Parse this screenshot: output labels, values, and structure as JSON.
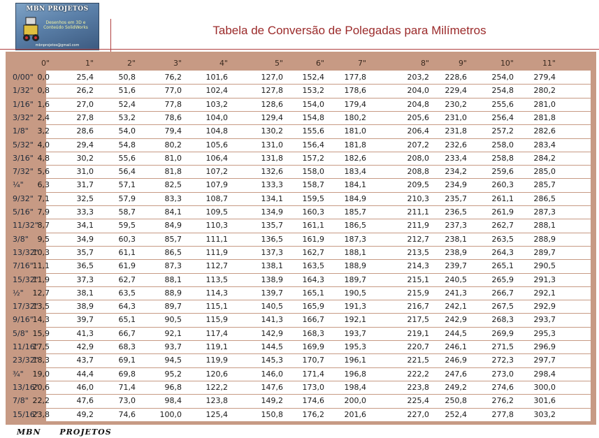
{
  "logo": {
    "name": "MBN PROJETOS",
    "tagline": "Desenhos em 3D e Conteúdo SolidWorks",
    "email": "mbnprojetos@gmail.com"
  },
  "title": "Tabela de Conversão de Polegadas para Milímetros",
  "columns": [
    "0\"",
    "1\"",
    "2\"",
    "3\"",
    "4\"",
    "5\"",
    "6\"",
    "7\"",
    "8\"",
    "9\"",
    "10\"",
    "11\""
  ],
  "rows": [
    {
      "label": "0/00\"",
      "values": [
        "0,0",
        "25,4",
        "50,8",
        "76,2",
        "101,6",
        "127,0",
        "152,4",
        "177,8",
        "203,2",
        "228,6",
        "254,0",
        "279,4"
      ]
    },
    {
      "label": "1/32\"",
      "values": [
        "0,8",
        "26,2",
        "51,6",
        "77,0",
        "102,4",
        "127,8",
        "153,2",
        "178,6",
        "204,0",
        "229,4",
        "254,8",
        "280,2"
      ]
    },
    {
      "label": "1/16\"",
      "values": [
        "1,6",
        "27,0",
        "52,4",
        "77,8",
        "103,2",
        "128,6",
        "154,0",
        "179,4",
        "204,8",
        "230,2",
        "255,6",
        "281,0"
      ]
    },
    {
      "label": "3/32\"",
      "values": [
        "2,4",
        "27,8",
        "53,2",
        "78,6",
        "104,0",
        "129,4",
        "154,8",
        "180,2",
        "205,6",
        "231,0",
        "256,4",
        "281,8"
      ]
    },
    {
      "label": "1/8\"",
      "values": [
        "3,2",
        "28,6",
        "54,0",
        "79,4",
        "104,8",
        "130,2",
        "155,6",
        "181,0",
        "206,4",
        "231,8",
        "257,2",
        "282,6"
      ]
    },
    {
      "label": "5/32\"",
      "values": [
        "4,0",
        "29,4",
        "54,8",
        "80,2",
        "105,6",
        "131,0",
        "156,4",
        "181,8",
        "207,2",
        "232,6",
        "258,0",
        "283,4"
      ]
    },
    {
      "label": "3/16\"",
      "values": [
        "4,8",
        "30,2",
        "55,6",
        "81,0",
        "106,4",
        "131,8",
        "157,2",
        "182,6",
        "208,0",
        "233,4",
        "258,8",
        "284,2"
      ]
    },
    {
      "label": "7/32\"",
      "values": [
        "5,6",
        "31,0",
        "56,4",
        "81,8",
        "107,2",
        "132,6",
        "158,0",
        "183,4",
        "208,8",
        "234,2",
        "259,6",
        "285,0"
      ]
    },
    {
      "label": "¼\"",
      "values": [
        "6,3",
        "31,7",
        "57,1",
        "82,5",
        "107,9",
        "133,3",
        "158,7",
        "184,1",
        "209,5",
        "234,9",
        "260,3",
        "285,7"
      ]
    },
    {
      "label": "9/32\"",
      "values": [
        "7,1",
        "32,5",
        "57,9",
        "83,3",
        "108,7",
        "134,1",
        "159,5",
        "184,9",
        "210,3",
        "235,7",
        "261,1",
        "286,5"
      ]
    },
    {
      "label": "5/16\"",
      "values": [
        "7,9",
        "33,3",
        "58,7",
        "84,1",
        "109,5",
        "134,9",
        "160,3",
        "185,7",
        "211,1",
        "236,5",
        "261,9",
        "287,3"
      ]
    },
    {
      "label": "11/32\"",
      "values": [
        "8,7",
        "34,1",
        "59,5",
        "84,9",
        "110,3",
        "135,7",
        "161,1",
        "186,5",
        "211,9",
        "237,3",
        "262,7",
        "288,1"
      ]
    },
    {
      "label": "3/8\"",
      "values": [
        "9,5",
        "34,9",
        "60,3",
        "85,7",
        "111,1",
        "136,5",
        "161,9",
        "187,3",
        "212,7",
        "238,1",
        "263,5",
        "288,9"
      ]
    },
    {
      "label": "13/32\"",
      "values": [
        "10,3",
        "35,7",
        "61,1",
        "86,5",
        "111,9",
        "137,3",
        "162,7",
        "188,1",
        "213,5",
        "238,9",
        "264,3",
        "289,7"
      ]
    },
    {
      "label": "7/16\"",
      "values": [
        "11,1",
        "36,5",
        "61,9",
        "87,3",
        "112,7",
        "138,1",
        "163,5",
        "188,9",
        "214,3",
        "239,7",
        "265,1",
        "290,5"
      ]
    },
    {
      "label": "15/32\"",
      "values": [
        "11,9",
        "37,3",
        "62,7",
        "88,1",
        "113,5",
        "138,9",
        "164,3",
        "189,7",
        "215,1",
        "240,5",
        "265,9",
        "291,3"
      ]
    },
    {
      "label": "½\"",
      "values": [
        "12,7",
        "38,1",
        "63,5",
        "88,9",
        "114,3",
        "139,7",
        "165,1",
        "190,5",
        "215,9",
        "241,3",
        "266,7",
        "292,1"
      ]
    },
    {
      "label": "17/32\"",
      "values": [
        "13,5",
        "38,9",
        "64,3",
        "89,7",
        "115,1",
        "140,5",
        "165,9",
        "191,3",
        "216,7",
        "242,1",
        "267,5",
        "292,9"
      ]
    },
    {
      "label": "9/16\"",
      "values": [
        "14,3",
        "39,7",
        "65,1",
        "90,5",
        "115,9",
        "141,3",
        "166,7",
        "192,1",
        "217,5",
        "242,9",
        "268,3",
        "293,7"
      ]
    },
    {
      "label": "5/8\"",
      "values": [
        "15,9",
        "41,3",
        "66,7",
        "92,1",
        "117,4",
        "142,9",
        "168,3",
        "193,7",
        "219,1",
        "244,5",
        "269,9",
        "295,3"
      ]
    },
    {
      "label": "11/16\"",
      "values": [
        "17,5",
        "42,9",
        "68,3",
        "93,7",
        "119,1",
        "144,5",
        "169,9",
        "195,3",
        "220,7",
        "246,1",
        "271,5",
        "296,9"
      ]
    },
    {
      "label": "23/32\"",
      "values": [
        "18,3",
        "43,7",
        "69,1",
        "94,5",
        "119,9",
        "145,3",
        "170,7",
        "196,1",
        "221,5",
        "246,9",
        "272,3",
        "297,7"
      ]
    },
    {
      "label": "¾\"",
      "values": [
        "19,0",
        "44,4",
        "69,8",
        "95,2",
        "120,6",
        "146,0",
        "171,4",
        "196,8",
        "222,2",
        "247,6",
        "273,0",
        "298,4"
      ]
    },
    {
      "label": "13/16\"",
      "values": [
        "20,6",
        "46,0",
        "71,4",
        "96,8",
        "122,2",
        "147,6",
        "173,0",
        "198,4",
        "223,8",
        "249,2",
        "274,6",
        "300,0"
      ]
    },
    {
      "label": "7/8\"",
      "values": [
        "22,2",
        "47,6",
        "73,0",
        "98,4",
        "123,8",
        "149,2",
        "174,6",
        "200,0",
        "225,4",
        "250,8",
        "276,2",
        "301,6"
      ]
    },
    {
      "label": "15/16\"",
      "values": [
        "23,8",
        "49,2",
        "74,6",
        "100,0",
        "125,4",
        "150,8",
        "176,2",
        "201,6",
        "227,0",
        "252,4",
        "277,8",
        "303,2"
      ]
    }
  ],
  "footer": "MBN PROJETOS",
  "colors": {
    "title": "#9b2a2a",
    "table_frame": "#c79a84",
    "rule": "#b04040"
  }
}
